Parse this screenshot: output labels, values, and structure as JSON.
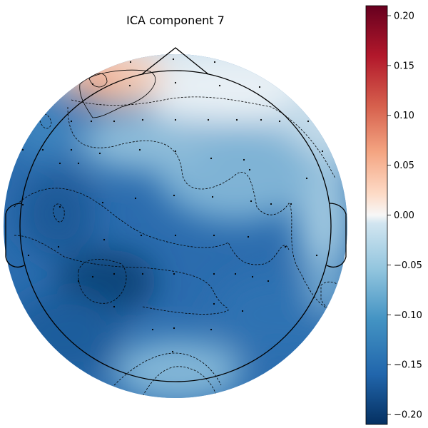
{
  "chart_data": {
    "type": "heatmap",
    "title": "ICA component 7",
    "colormap": "RdBu_r",
    "vlim": [
      -0.21,
      0.21
    ],
    "colorbar": {
      "ticks": [
        0.2,
        0.15,
        0.1,
        0.05,
        0.0,
        -0.05,
        -0.1,
        -0.15,
        -0.2
      ],
      "tick_labels": [
        "0.20",
        "0.15",
        "0.10",
        "0.05",
        "0.00",
        "−0.05",
        "−0.10",
        "−0.15",
        "−0.20"
      ]
    },
    "colors": {
      "max": "#67001f",
      "high": "#d6604d",
      "mid": "#f7f7f7",
      "low": "#4393c3",
      "min": "#053061"
    },
    "contour_levels": [
      -0.15,
      -0.1,
      -0.05,
      0.0,
      0.05
    ],
    "head_outline": true,
    "sensors_shown": true,
    "sensor_count": 64
  }
}
